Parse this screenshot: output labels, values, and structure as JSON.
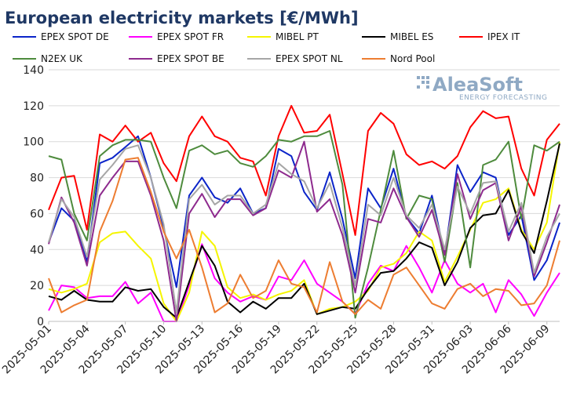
{
  "chart_data": {
    "type": "line",
    "title": "European electricity markets [€/MWh]",
    "xlabel": "",
    "ylabel": "",
    "ylim": [
      0,
      140
    ],
    "yticks": [
      0,
      20,
      40,
      60,
      80,
      100,
      120,
      140
    ],
    "grid": "horizontal",
    "legend_position": "top",
    "x": [
      "2025-05-01",
      "2025-05-02",
      "2025-05-03",
      "2025-05-04",
      "2025-05-05",
      "2025-05-06",
      "2025-05-07",
      "2025-05-08",
      "2025-05-09",
      "2025-05-10",
      "2025-05-11",
      "2025-05-12",
      "2025-05-13",
      "2025-05-14",
      "2025-05-15",
      "2025-05-16",
      "2025-05-17",
      "2025-05-18",
      "2025-05-19",
      "2025-05-20",
      "2025-05-21",
      "2025-05-22",
      "2025-05-23",
      "2025-05-24",
      "2025-05-25",
      "2025-05-26",
      "2025-05-27",
      "2025-05-28",
      "2025-05-29",
      "2025-05-30",
      "2025-05-31",
      "2025-06-01",
      "2025-06-02",
      "2025-06-03",
      "2025-06-04",
      "2025-06-05",
      "2025-06-06",
      "2025-06-07",
      "2025-06-08",
      "2025-06-09",
      "2025-06-10"
    ],
    "xtick_labels": [
      "2025-05-01",
      "2025-05-04",
      "2025-05-07",
      "2025-05-10",
      "2025-05-13",
      "2025-05-16",
      "2025-05-19",
      "2025-05-22",
      "2025-05-25",
      "2025-05-28",
      "2025-05-31",
      "2025-06-03",
      "2025-06-06",
      "2025-06-09"
    ],
    "series": [
      {
        "name": "EPEX SPOT DE",
        "color": "#0b24c9",
        "values": [
          44,
          63,
          56,
          33,
          88,
          91,
          97,
          103,
          80,
          52,
          19,
          70,
          80,
          69,
          66,
          74,
          60,
          63,
          96,
          92,
          72,
          62,
          83,
          57,
          24,
          74,
          63,
          85,
          58,
          49,
          70,
          37,
          87,
          72,
          83,
          80,
          48,
          59,
          23,
          34,
          55
        ]
      },
      {
        "name": "EPEX SPOT FR",
        "color": "#ff00ff",
        "values": [
          6,
          20,
          19,
          13,
          14,
          14,
          22,
          10,
          16,
          0,
          -5,
          20,
          43,
          24,
          16,
          11,
          14,
          12,
          25,
          23,
          34,
          21,
          16,
          11,
          4,
          21,
          31,
          28,
          42,
          30,
          16,
          34,
          21,
          16,
          21,
          5,
          23,
          15,
          3,
          16,
          27
        ]
      },
      {
        "name": "MIBEL PT",
        "color": "#f5f500",
        "values": [
          18,
          16,
          18,
          21,
          44,
          49,
          50,
          42,
          35,
          10,
          0,
          16,
          50,
          42,
          19,
          13,
          15,
          12,
          15,
          17,
          23,
          4,
          7,
          8,
          11,
          17,
          30,
          32,
          38,
          50,
          45,
          22,
          36,
          51,
          66,
          68,
          74,
          51,
          40,
          55,
          100
        ]
      },
      {
        "name": "MIBEL ES",
        "color": "#000000",
        "values": [
          14,
          12,
          17,
          12,
          11,
          11,
          19,
          17,
          18,
          8,
          2,
          22,
          42,
          31,
          11,
          5,
          11,
          7,
          13,
          13,
          21,
          4,
          6,
          8,
          7,
          18,
          27,
          28,
          35,
          44,
          41,
          20,
          33,
          52,
          59,
          60,
          73,
          50,
          38,
          67,
          99
        ]
      },
      {
        "name": "IPEX IT",
        "color": "#ff0000",
        "values": [
          62,
          80,
          81,
          51,
          104,
          100,
          109,
          100,
          105,
          88,
          78,
          103,
          114,
          103,
          100,
          91,
          89,
          70,
          103,
          120,
          105,
          106,
          115,
          82,
          48,
          106,
          116,
          110,
          93,
          87,
          89,
          85,
          92,
          108,
          117,
          113,
          114,
          85,
          70,
          101,
          110
        ]
      },
      {
        "name": "N2EX UK",
        "color": "#4e8b3d",
        "values": [
          92,
          90,
          60,
          45,
          92,
          98,
          101,
          101,
          100,
          80,
          63,
          95,
          98,
          93,
          95,
          88,
          86,
          92,
          101,
          100,
          103,
          103,
          106,
          76,
          2,
          30,
          62,
          95,
          57,
          70,
          68,
          33,
          77,
          30,
          87,
          90,
          100,
          57,
          98,
          95,
          100
        ]
      },
      {
        "name": "EPEX SPOT BE",
        "color": "#8e2a8e",
        "values": [
          43,
          69,
          55,
          31,
          70,
          80,
          89,
          89,
          70,
          45,
          0,
          60,
          71,
          58,
          68,
          68,
          59,
          63,
          84,
          80,
          100,
          61,
          68,
          48,
          16,
          57,
          55,
          74,
          58,
          47,
          62,
          37,
          82,
          57,
          73,
          77,
          45,
          64,
          25,
          44,
          65
        ]
      },
      {
        "name": "EPEX SPOT NL",
        "color": "#a6a6a6",
        "values": [
          44,
          68,
          58,
          36,
          79,
          87,
          96,
          98,
          80,
          54,
          5,
          68,
          76,
          65,
          70,
          70,
          60,
          65,
          88,
          82,
          78,
          63,
          77,
          52,
          20,
          65,
          59,
          80,
          59,
          52,
          65,
          40,
          75,
          60,
          77,
          78,
          50,
          66,
          27,
          47,
          60
        ]
      },
      {
        "name": "Nord Pool",
        "color": "#ed7d31",
        "values": [
          24,
          5,
          9,
          12,
          50,
          67,
          90,
          91,
          72,
          50,
          35,
          51,
          30,
          5,
          10,
          26,
          13,
          17,
          34,
          21,
          19,
          5,
          33,
          11,
          4,
          12,
          7,
          26,
          30,
          20,
          10,
          7,
          18,
          21,
          14,
          18,
          17,
          9,
          10,
          20,
          45
        ]
      }
    ]
  },
  "logo": {
    "name": "AleaSoft",
    "tagline": "ENERGY FORECASTING"
  }
}
